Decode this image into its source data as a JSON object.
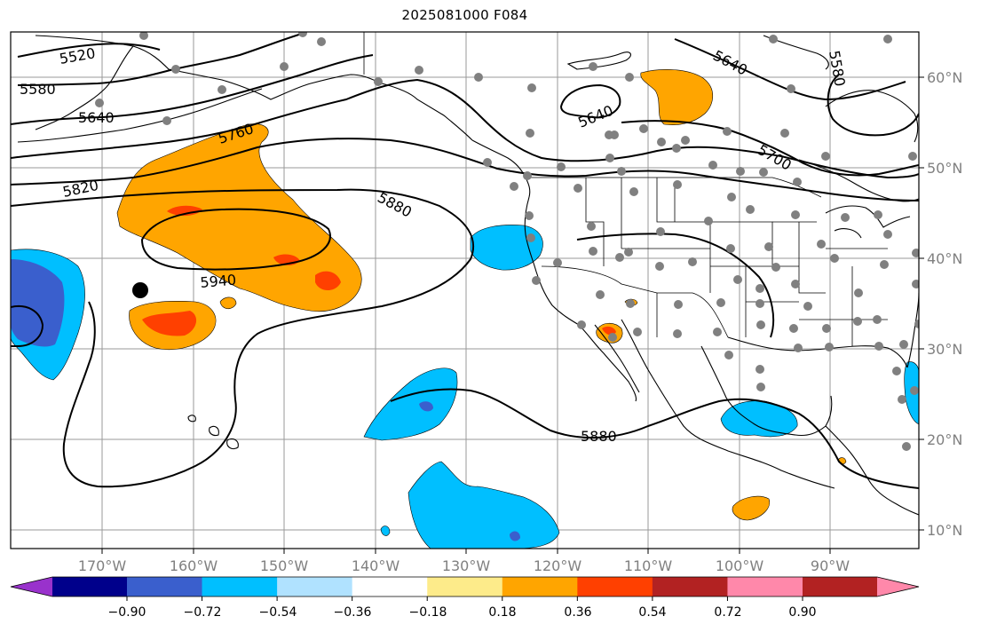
{
  "title": "2025081000 F084",
  "map": {
    "lon_labels": [
      "170°W",
      "160°W",
      "150°W",
      "140°W",
      "130°W",
      "120°W",
      "110°W",
      "100°W",
      "90°W"
    ],
    "lat_labels": [
      "60°N",
      "50°N",
      "40°N",
      "30°N",
      "20°N",
      "10°N"
    ],
    "contour_labels": [
      "5520",
      "5580",
      "5640",
      "5760",
      "5820",
      "5880",
      "5940",
      "5640",
      "5640",
      "5700",
      "5580",
      "5880"
    ]
  },
  "colorbar": {
    "colors": [
      "#9932cc",
      "#00008b",
      "#3a5fcd",
      "#00bfff",
      "#b0e2ff",
      "#ffffff",
      "#fdeb8a",
      "#ffa500",
      "#ff4000",
      "#b22222",
      "#ff88aa"
    ],
    "tick_labels": [
      "−0.90",
      "−0.72",
      "−0.54",
      "−0.36",
      "−0.18",
      "0.18",
      "0.36",
      "0.54",
      "0.72",
      "0.90"
    ]
  }
}
